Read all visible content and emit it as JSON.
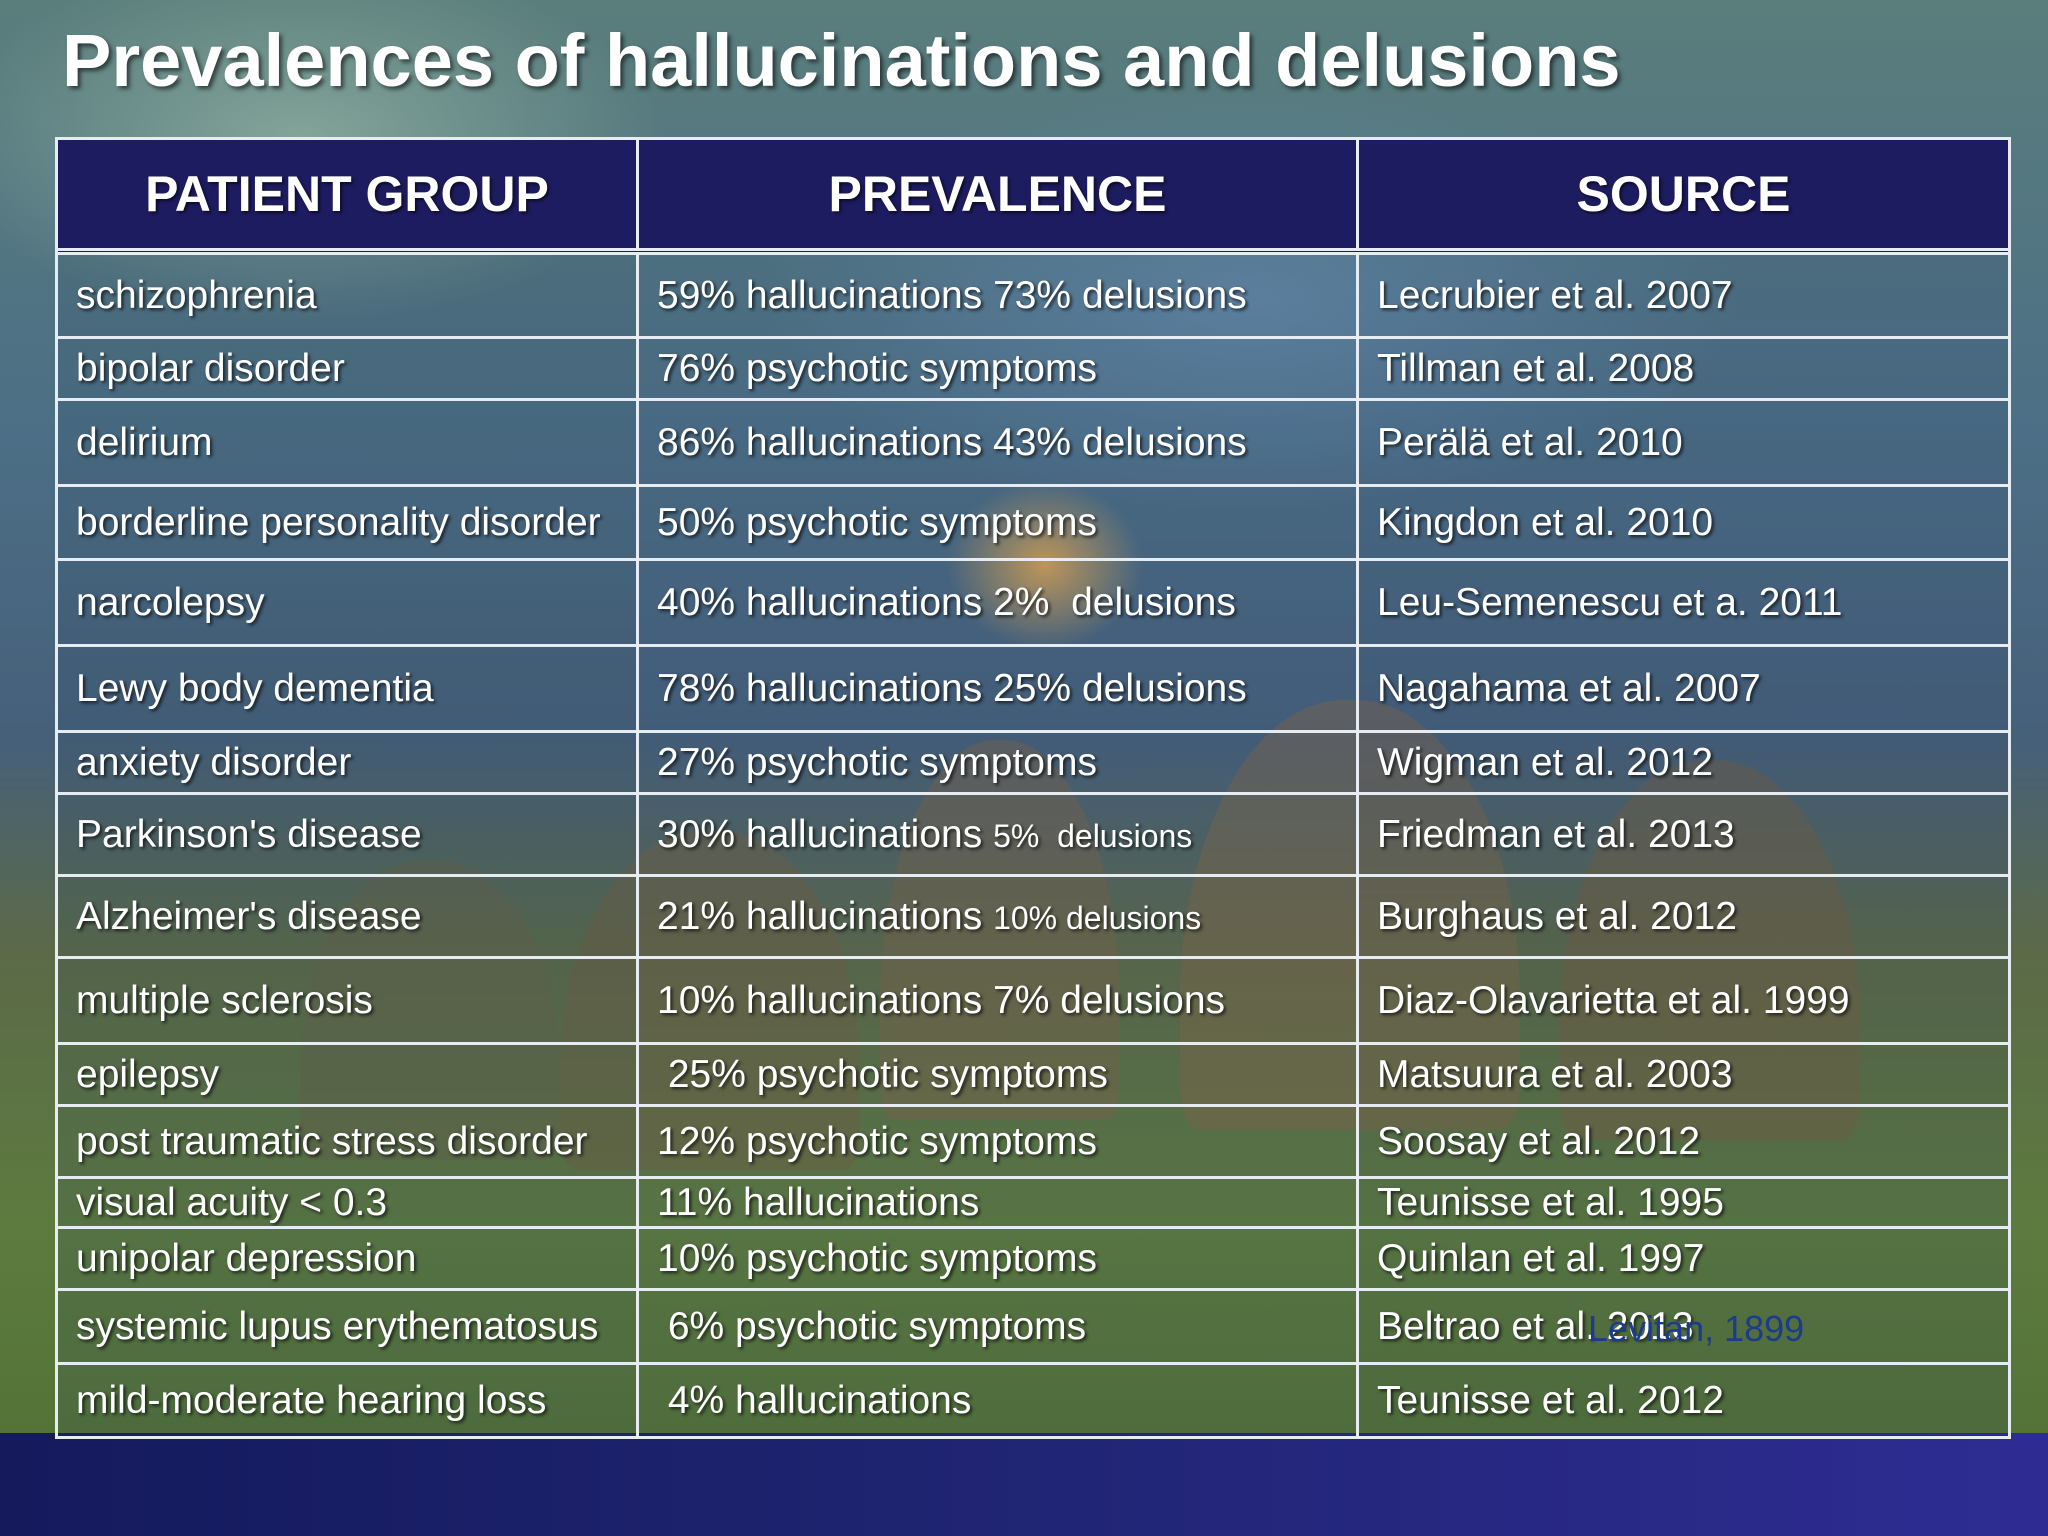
{
  "slide": {
    "title": "Prevalences of hallucinations and delusions",
    "painting_credit": "Levitan, 1899"
  },
  "table": {
    "headers": [
      "PATIENT GROUP",
      "PREVALENCE",
      "SOURCE"
    ],
    "rows": [
      {
        "group": "schizophrenia",
        "prevalence": "59% hallucinations 73% delusions",
        "source": "Lecrubier et al. 2007"
      },
      {
        "group": "bipolar disorder",
        "prevalence": "76% psychotic symptoms",
        "source": "Tillman et al. 2008"
      },
      {
        "group": "delirium",
        "prevalence": "86% hallucinations 43% delusions",
        "source": "Perälä et al. 2010"
      },
      {
        "group": "borderline personality disorder",
        "prevalence": "50% psychotic symptoms",
        "source": "Kingdon et al. 2010"
      },
      {
        "group": "narcolepsy",
        "prevalence": "40% hallucinations 2%  delusions",
        "source": "Leu-Semenescu et a. 2011"
      },
      {
        "group": "Lewy body dementia",
        "prevalence": "78% hallucinations 25% delusions",
        "source": "Nagahama et al. 2007"
      },
      {
        "group": "anxiety disorder",
        "prevalence": "27% psychotic symptoms",
        "source": "Wigman et al. 2012"
      },
      {
        "group": "Parkinson's disease",
        "prevalence": "30% hallucinations",
        "prevalence_extra": "5%  delusions",
        "source": "Friedman et al. 2013"
      },
      {
        "group": "Alzheimer's disease",
        "prevalence": "21% hallucinations",
        "prevalence_extra": "10% delusions",
        "source": "Burghaus et al. 2012"
      },
      {
        "group": "multiple sclerosis",
        "prevalence": "10% hallucinations 7% delusions",
        "source": "Diaz-Olavarietta et al. 1999"
      },
      {
        "group": "epilepsy",
        "prevalence": " 25% psychotic symptoms",
        "source": "Matsuura et al. 2003"
      },
      {
        "group": "post traumatic stress disorder",
        "prevalence": "12% psychotic symptoms",
        "source": "Soosay et al. 2012"
      },
      {
        "group": "visual acuity < 0.3",
        "prevalence": "11% hallucinations",
        "source": "Teunisse et al. 1995"
      },
      {
        "group": "unipolar depression",
        "prevalence": "10% psychotic symptoms",
        "source": "Quinlan et al. 1997"
      },
      {
        "group": "systemic lupus erythematosus",
        "prevalence": " 6% psychotic symptoms",
        "source": "Beltrao et al. 2013"
      },
      {
        "group": "mild-moderate hearing loss",
        "prevalence": " 4% hallucinations",
        "source": "Teunisse et al. 2012"
      }
    ]
  }
}
